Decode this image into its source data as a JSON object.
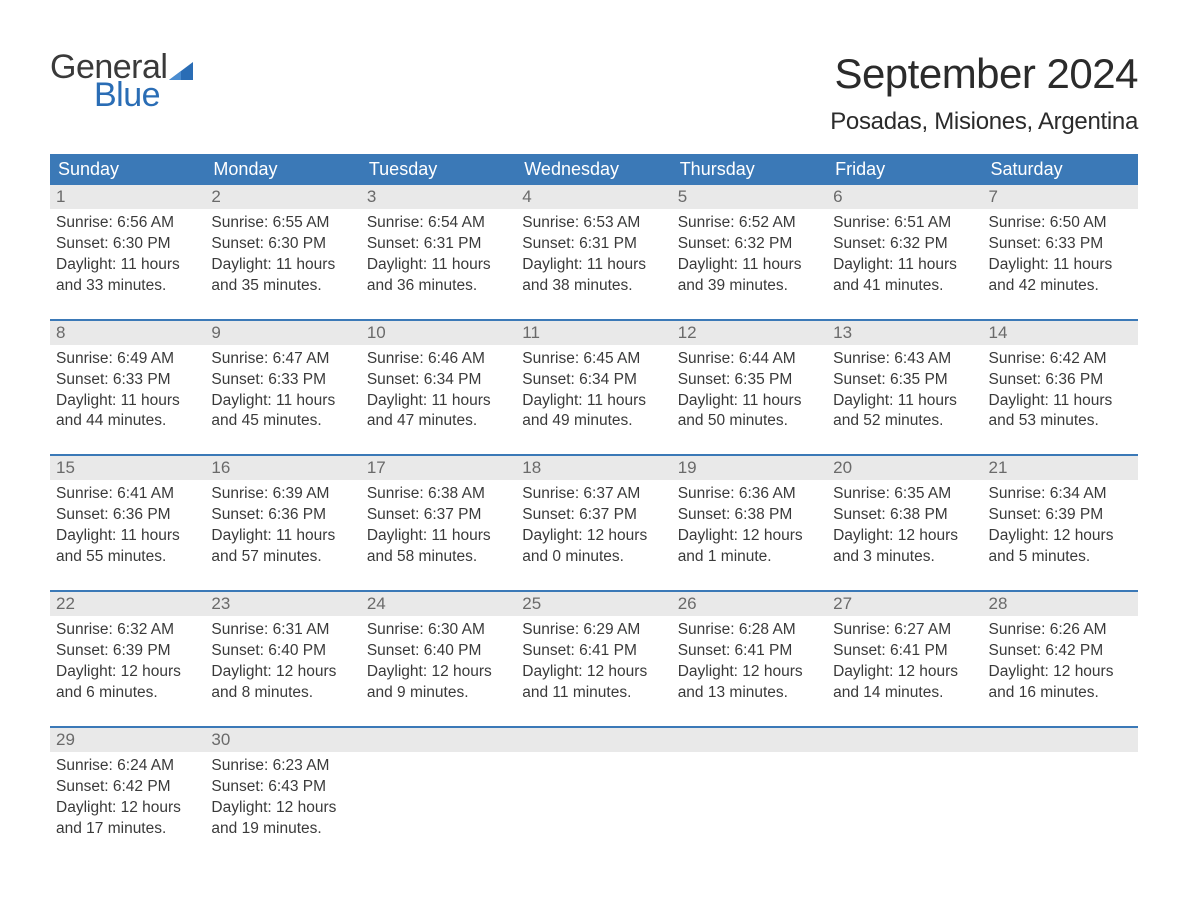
{
  "logo": {
    "text1": "General",
    "text2": "Blue",
    "tri_color": "#2a6db5"
  },
  "title": "September 2024",
  "location": "Posadas, Misiones, Argentina",
  "colors": {
    "header_bg": "#3b79b7",
    "header_text": "#ffffff",
    "daynum_bg": "#e9e9e9",
    "daynum_text": "#6a6a6a",
    "body_text": "#3a3a3a",
    "week_border": "#3b79b7",
    "logo_blue": "#2a6db5"
  },
  "day_labels": [
    "Sunday",
    "Monday",
    "Tuesday",
    "Wednesday",
    "Thursday",
    "Friday",
    "Saturday"
  ],
  "weeks": [
    [
      {
        "n": "1",
        "sr": "Sunrise: 6:56 AM",
        "ss": "Sunset: 6:30 PM",
        "d1": "Daylight: 11 hours",
        "d2": "and 33 minutes."
      },
      {
        "n": "2",
        "sr": "Sunrise: 6:55 AM",
        "ss": "Sunset: 6:30 PM",
        "d1": "Daylight: 11 hours",
        "d2": "and 35 minutes."
      },
      {
        "n": "3",
        "sr": "Sunrise: 6:54 AM",
        "ss": "Sunset: 6:31 PM",
        "d1": "Daylight: 11 hours",
        "d2": "and 36 minutes."
      },
      {
        "n": "4",
        "sr": "Sunrise: 6:53 AM",
        "ss": "Sunset: 6:31 PM",
        "d1": "Daylight: 11 hours",
        "d2": "and 38 minutes."
      },
      {
        "n": "5",
        "sr": "Sunrise: 6:52 AM",
        "ss": "Sunset: 6:32 PM",
        "d1": "Daylight: 11 hours",
        "d2": "and 39 minutes."
      },
      {
        "n": "6",
        "sr": "Sunrise: 6:51 AM",
        "ss": "Sunset: 6:32 PM",
        "d1": "Daylight: 11 hours",
        "d2": "and 41 minutes."
      },
      {
        "n": "7",
        "sr": "Sunrise: 6:50 AM",
        "ss": "Sunset: 6:33 PM",
        "d1": "Daylight: 11 hours",
        "d2": "and 42 minutes."
      }
    ],
    [
      {
        "n": "8",
        "sr": "Sunrise: 6:49 AM",
        "ss": "Sunset: 6:33 PM",
        "d1": "Daylight: 11 hours",
        "d2": "and 44 minutes."
      },
      {
        "n": "9",
        "sr": "Sunrise: 6:47 AM",
        "ss": "Sunset: 6:33 PM",
        "d1": "Daylight: 11 hours",
        "d2": "and 45 minutes."
      },
      {
        "n": "10",
        "sr": "Sunrise: 6:46 AM",
        "ss": "Sunset: 6:34 PM",
        "d1": "Daylight: 11 hours",
        "d2": "and 47 minutes."
      },
      {
        "n": "11",
        "sr": "Sunrise: 6:45 AM",
        "ss": "Sunset: 6:34 PM",
        "d1": "Daylight: 11 hours",
        "d2": "and 49 minutes."
      },
      {
        "n": "12",
        "sr": "Sunrise: 6:44 AM",
        "ss": "Sunset: 6:35 PM",
        "d1": "Daylight: 11 hours",
        "d2": "and 50 minutes."
      },
      {
        "n": "13",
        "sr": "Sunrise: 6:43 AM",
        "ss": "Sunset: 6:35 PM",
        "d1": "Daylight: 11 hours",
        "d2": "and 52 minutes."
      },
      {
        "n": "14",
        "sr": "Sunrise: 6:42 AM",
        "ss": "Sunset: 6:36 PM",
        "d1": "Daylight: 11 hours",
        "d2": "and 53 minutes."
      }
    ],
    [
      {
        "n": "15",
        "sr": "Sunrise: 6:41 AM",
        "ss": "Sunset: 6:36 PM",
        "d1": "Daylight: 11 hours",
        "d2": "and 55 minutes."
      },
      {
        "n": "16",
        "sr": "Sunrise: 6:39 AM",
        "ss": "Sunset: 6:36 PM",
        "d1": "Daylight: 11 hours",
        "d2": "and 57 minutes."
      },
      {
        "n": "17",
        "sr": "Sunrise: 6:38 AM",
        "ss": "Sunset: 6:37 PM",
        "d1": "Daylight: 11 hours",
        "d2": "and 58 minutes."
      },
      {
        "n": "18",
        "sr": "Sunrise: 6:37 AM",
        "ss": "Sunset: 6:37 PM",
        "d1": "Daylight: 12 hours",
        "d2": "and 0 minutes."
      },
      {
        "n": "19",
        "sr": "Sunrise: 6:36 AM",
        "ss": "Sunset: 6:38 PM",
        "d1": "Daylight: 12 hours",
        "d2": "and 1 minute."
      },
      {
        "n": "20",
        "sr": "Sunrise: 6:35 AM",
        "ss": "Sunset: 6:38 PM",
        "d1": "Daylight: 12 hours",
        "d2": "and 3 minutes."
      },
      {
        "n": "21",
        "sr": "Sunrise: 6:34 AM",
        "ss": "Sunset: 6:39 PM",
        "d1": "Daylight: 12 hours",
        "d2": "and 5 minutes."
      }
    ],
    [
      {
        "n": "22",
        "sr": "Sunrise: 6:32 AM",
        "ss": "Sunset: 6:39 PM",
        "d1": "Daylight: 12 hours",
        "d2": "and 6 minutes."
      },
      {
        "n": "23",
        "sr": "Sunrise: 6:31 AM",
        "ss": "Sunset: 6:40 PM",
        "d1": "Daylight: 12 hours",
        "d2": "and 8 minutes."
      },
      {
        "n": "24",
        "sr": "Sunrise: 6:30 AM",
        "ss": "Sunset: 6:40 PM",
        "d1": "Daylight: 12 hours",
        "d2": "and 9 minutes."
      },
      {
        "n": "25",
        "sr": "Sunrise: 6:29 AM",
        "ss": "Sunset: 6:41 PM",
        "d1": "Daylight: 12 hours",
        "d2": "and 11 minutes."
      },
      {
        "n": "26",
        "sr": "Sunrise: 6:28 AM",
        "ss": "Sunset: 6:41 PM",
        "d1": "Daylight: 12 hours",
        "d2": "and 13 minutes."
      },
      {
        "n": "27",
        "sr": "Sunrise: 6:27 AM",
        "ss": "Sunset: 6:41 PM",
        "d1": "Daylight: 12 hours",
        "d2": "and 14 minutes."
      },
      {
        "n": "28",
        "sr": "Sunrise: 6:26 AM",
        "ss": "Sunset: 6:42 PM",
        "d1": "Daylight: 12 hours",
        "d2": "and 16 minutes."
      }
    ],
    [
      {
        "n": "29",
        "sr": "Sunrise: 6:24 AM",
        "ss": "Sunset: 6:42 PM",
        "d1": "Daylight: 12 hours",
        "d2": "and 17 minutes."
      },
      {
        "n": "30",
        "sr": "Sunrise: 6:23 AM",
        "ss": "Sunset: 6:43 PM",
        "d1": "Daylight: 12 hours",
        "d2": "and 19 minutes."
      },
      {
        "empty": true
      },
      {
        "empty": true
      },
      {
        "empty": true
      },
      {
        "empty": true
      },
      {
        "empty": true
      }
    ]
  ]
}
